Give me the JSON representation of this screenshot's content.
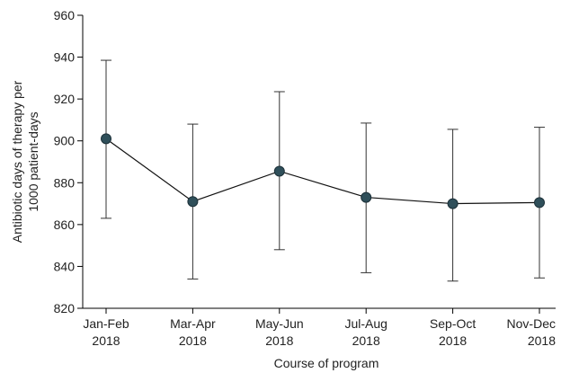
{
  "chart_data": {
    "type": "line",
    "title": "",
    "xlabel": "Course of program",
    "ylabel_lines": [
      "Antibiotic days of therapy per",
      "1000 patient-days"
    ],
    "ylim": [
      820,
      960
    ],
    "yticks": [
      820,
      840,
      860,
      880,
      900,
      920,
      940,
      960
    ],
    "categories": [
      [
        "Jan-Feb",
        "2018"
      ],
      [
        "Mar-Apr",
        "2018"
      ],
      [
        "May-Jun",
        "2018"
      ],
      [
        "Jul-Aug",
        "2018"
      ],
      [
        "Sep-Oct",
        "2018"
      ],
      [
        "Nov-Dec",
        "2018"
      ]
    ],
    "series": [
      {
        "values": [
          901,
          871,
          885.5,
          873,
          870,
          870.5
        ],
        "lower": [
          863,
          834,
          848,
          837,
          833,
          834.5
        ],
        "upper": [
          938.5,
          908,
          923.5,
          908.5,
          905.5,
          906.5
        ]
      }
    ],
    "grid": false,
    "colors": {
      "point": "#2f4f5a",
      "line": "#111111"
    }
  }
}
